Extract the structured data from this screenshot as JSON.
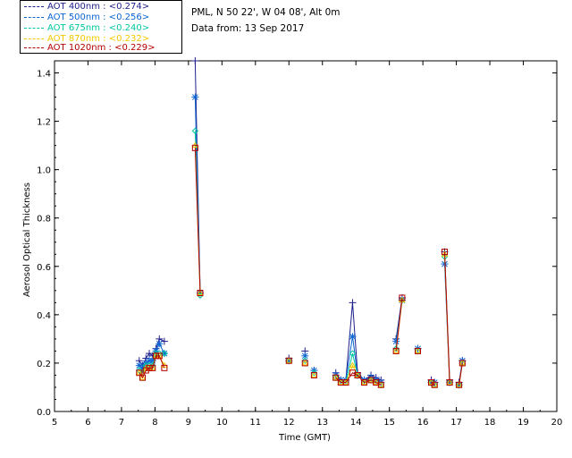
{
  "header": {
    "site": "PML, N 50 22', W 04 08', Alt 0m",
    "date": "Data from: 13 Sep 2017"
  },
  "legend": [
    {
      "label": "AOT  400nm : <0.274>",
      "color": "#1e1e8c"
    },
    {
      "label": "AOT  500nm : <0.256>",
      "color": "#0a64d2"
    },
    {
      "label": "AOT  675nm : <0.240>",
      "color": "#00c8a0"
    },
    {
      "label": "AOT  870nm : <0.232>",
      "color": "#f0c800"
    },
    {
      "label": "AOT 1020nm : <0.229>",
      "color": "#b40000"
    }
  ],
  "chart_data": {
    "type": "line",
    "xlabel": "Time (GMT)",
    "ylabel": "Aerosol Optical Thickness",
    "xlim": [
      5,
      20
    ],
    "ylim": [
      0.0,
      1.45
    ],
    "xticks": [
      5,
      6,
      7,
      8,
      9,
      10,
      11,
      12,
      13,
      14,
      15,
      16,
      17,
      18,
      19,
      20
    ],
    "yticks": [
      0.0,
      0.2,
      0.4,
      0.6,
      0.8,
      1.0,
      1.2,
      1.4
    ],
    "x": [
      7.53,
      7.63,
      7.73,
      7.83,
      7.93,
      8.03,
      8.13,
      8.28,
      9.2,
      9.35,
      12.0,
      12.48,
      12.75,
      13.4,
      13.55,
      13.7,
      13.9,
      14.05,
      14.25,
      14.45,
      14.6,
      14.75,
      15.2,
      15.38,
      15.85,
      16.25,
      16.35,
      16.65,
      16.8,
      17.08,
      17.18
    ],
    "series": [
      {
        "name": "AOT  400nm : <0.274>",
        "color": "#1e1e8c",
        "values": [
          0.21,
          0.19,
          0.22,
          0.24,
          0.23,
          0.26,
          0.3,
          0.29,
          1.45,
          0.49,
          0.22,
          0.25,
          0.17,
          0.16,
          0.13,
          0.13,
          0.45,
          0.16,
          0.13,
          0.15,
          0.14,
          0.13,
          0.3,
          0.47,
          0.26,
          0.13,
          0.12,
          0.66,
          0.13,
          0.12,
          0.21
        ]
      },
      {
        "name": "AOT  500nm : <0.256>",
        "color": "#0a64d2",
        "values": [
          0.19,
          0.18,
          0.2,
          0.21,
          0.21,
          0.25,
          0.28,
          0.24,
          1.3,
          0.49,
          0.21,
          0.23,
          0.17,
          0.15,
          0.13,
          0.13,
          0.31,
          0.15,
          0.13,
          0.14,
          0.13,
          0.12,
          0.29,
          0.46,
          0.26,
          0.12,
          0.12,
          0.61,
          0.12,
          0.11,
          0.21
        ]
      },
      {
        "name": "AOT  675nm : <0.240>",
        "color": "#00c8a0",
        "values": [
          0.17,
          0.16,
          0.19,
          0.19,
          0.19,
          0.24,
          0.24,
          0.24,
          1.16,
          0.48,
          0.21,
          0.21,
          0.16,
          0.14,
          0.12,
          0.12,
          0.24,
          0.15,
          0.12,
          0.13,
          0.12,
          0.11,
          0.26,
          0.46,
          0.25,
          0.12,
          0.11,
          0.64,
          0.12,
          0.11,
          0.2
        ]
      },
      {
        "name": "AOT  870nm : <0.232>",
        "color": "#f0c800",
        "values": [
          0.16,
          0.14,
          0.18,
          0.18,
          0.18,
          0.23,
          0.23,
          0.19,
          1.1,
          0.49,
          0.21,
          0.2,
          0.15,
          0.14,
          0.12,
          0.12,
          0.19,
          0.15,
          0.12,
          0.13,
          0.12,
          0.11,
          0.25,
          0.46,
          0.25,
          0.12,
          0.11,
          0.65,
          0.12,
          0.11,
          0.2
        ]
      },
      {
        "name": "AOT 1020nm : <0.229>",
        "color": "#b40000",
        "values": [
          0.16,
          0.14,
          0.17,
          0.18,
          0.18,
          0.23,
          0.23,
          0.18,
          1.09,
          0.49,
          0.21,
          0.2,
          0.15,
          0.14,
          0.12,
          0.12,
          0.16,
          0.15,
          0.12,
          0.13,
          0.12,
          0.11,
          0.25,
          0.47,
          0.25,
          0.12,
          0.11,
          0.66,
          0.12,
          0.11,
          0.2
        ]
      }
    ],
    "segments": [
      [
        0,
        8
      ],
      [
        8,
        10
      ],
      [
        10,
        11
      ],
      [
        11,
        12
      ],
      [
        12,
        13
      ],
      [
        13,
        22
      ],
      [
        22,
        24
      ],
      [
        24,
        25
      ],
      [
        25,
        27
      ],
      [
        27,
        29
      ],
      [
        29,
        31
      ]
    ],
    "grid": false,
    "legend_position": "top-left, outside plot"
  }
}
